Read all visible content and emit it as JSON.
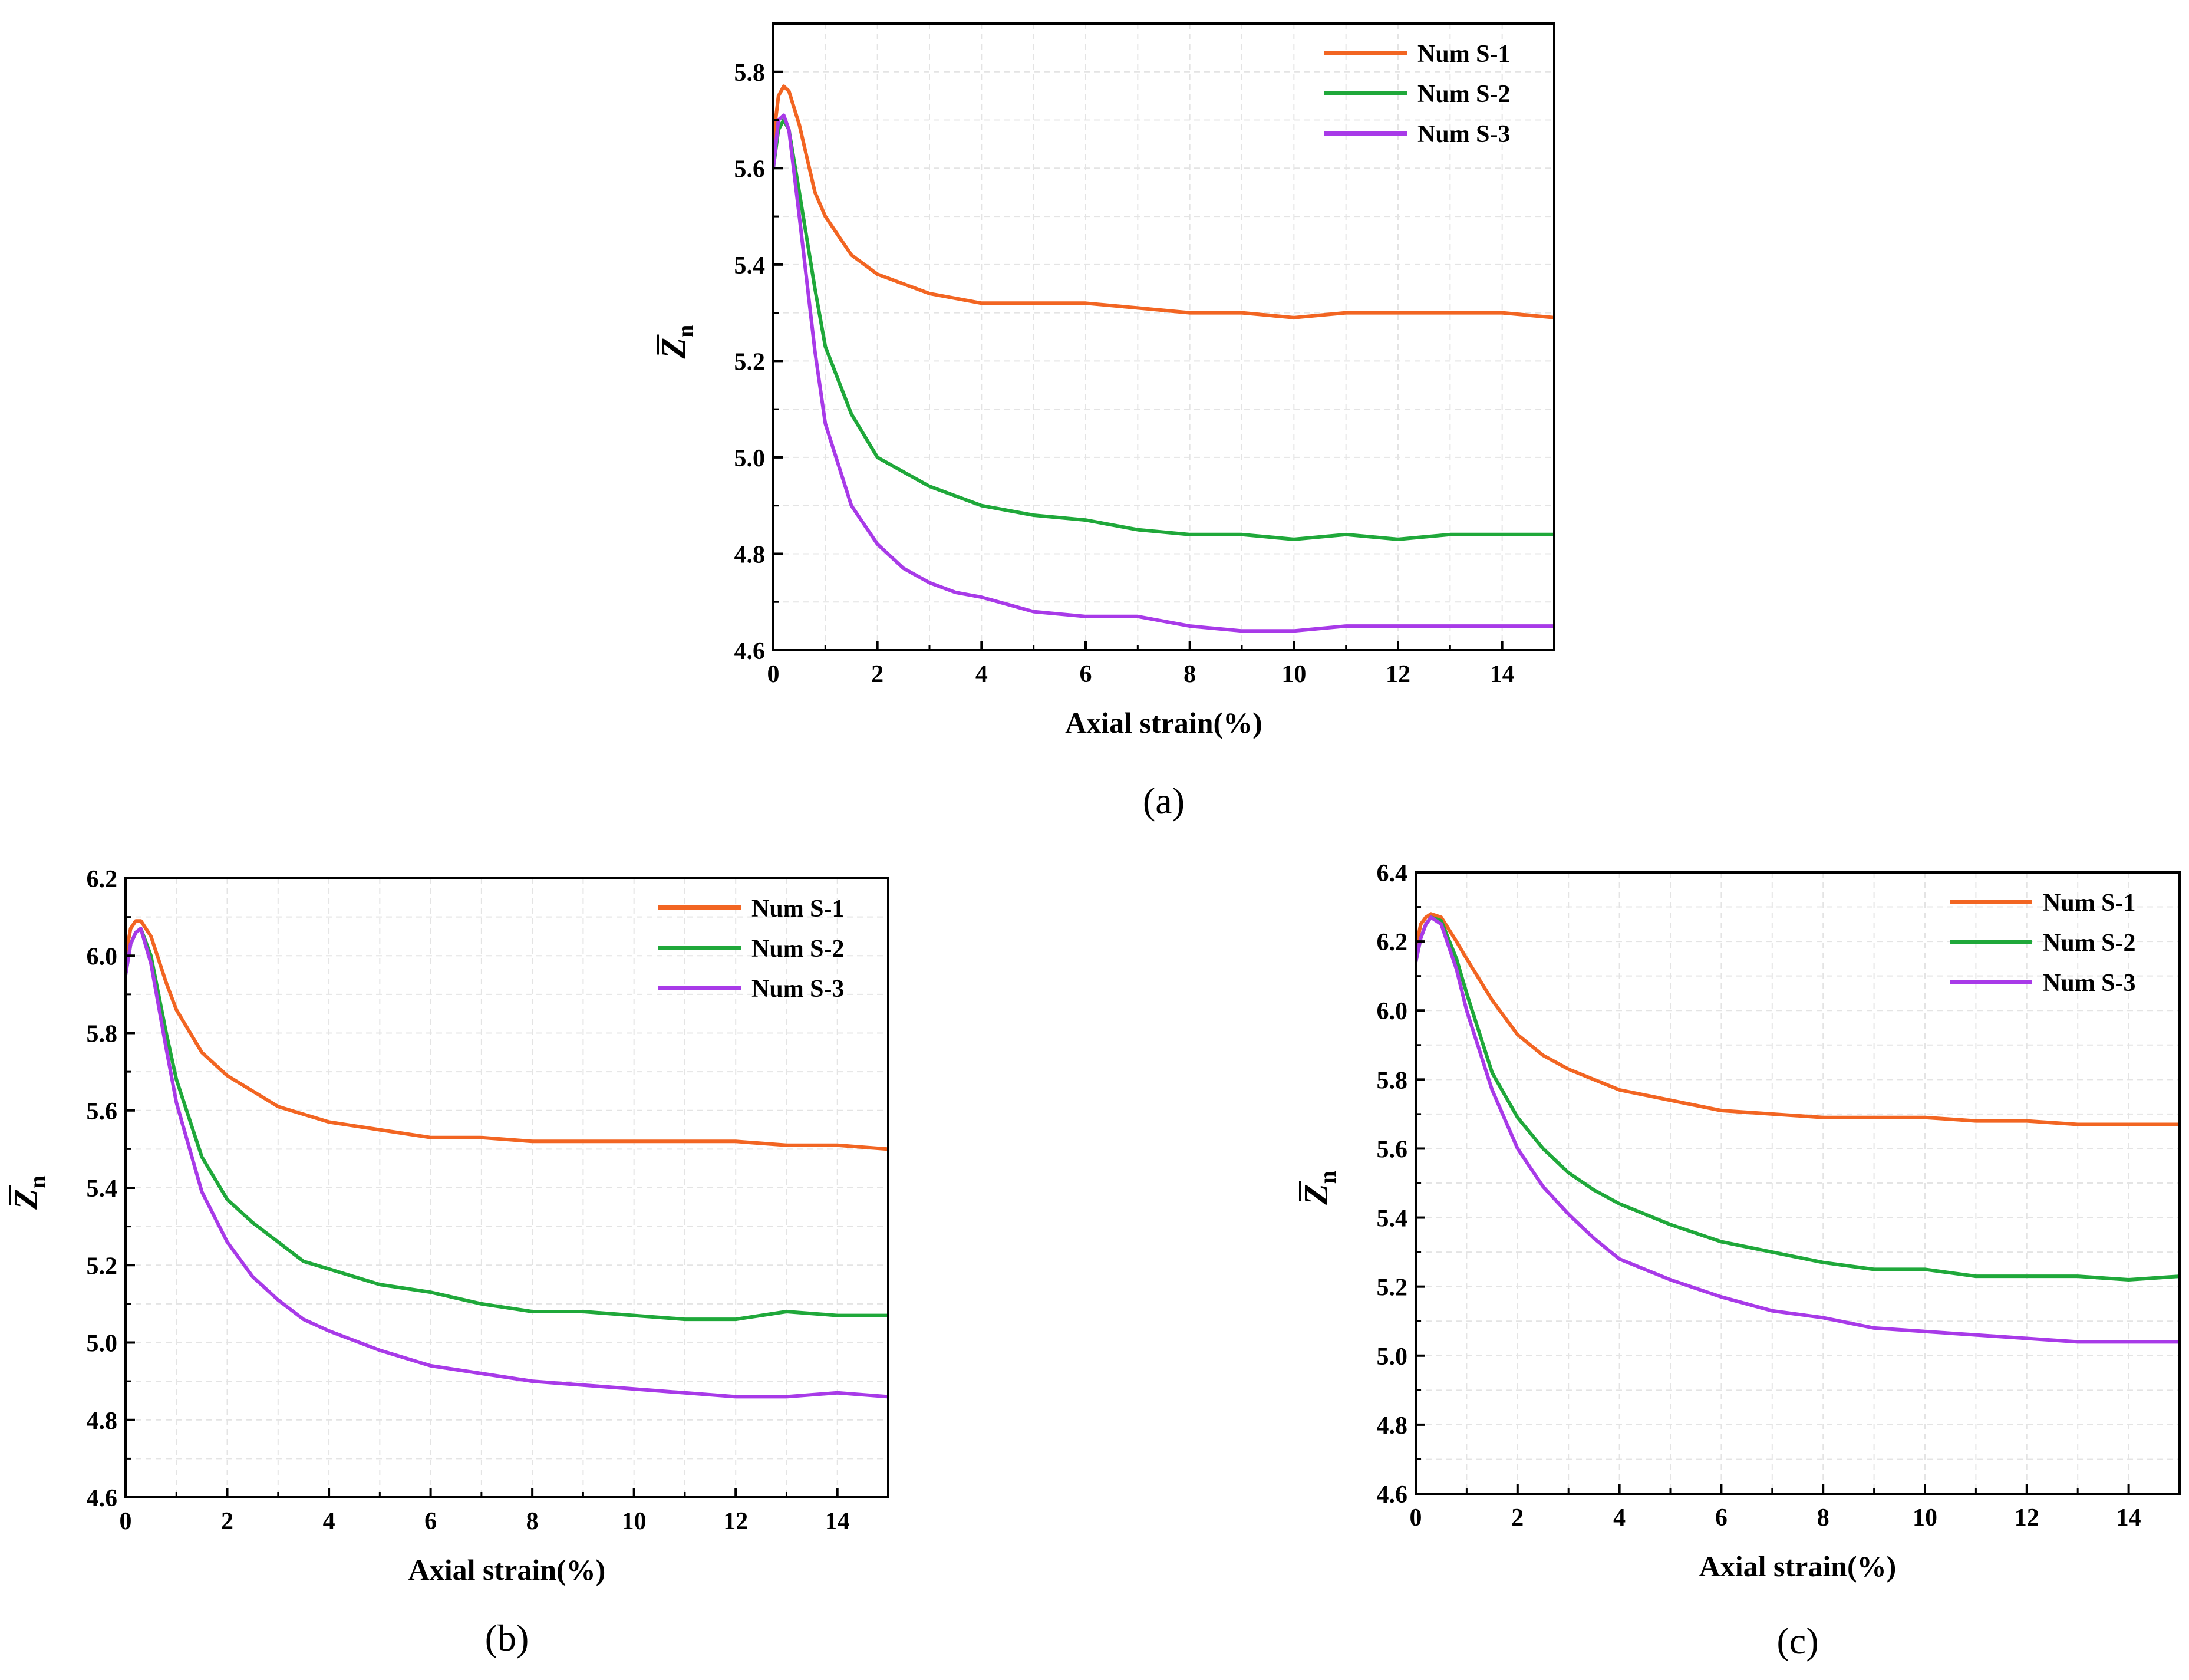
{
  "colors": {
    "Num S-1": "#f26522",
    "Num S-2": "#1fa83a",
    "Num S-3": "#a83ae8"
  },
  "chart_data": [
    {
      "id": "a",
      "type": "line",
      "panel_label": "a",
      "xlabel": "Axial strain(%)",
      "ylabel": "Z",
      "ylabel_subscript": "n",
      "ylabel_overbar": true,
      "xlim": [
        0,
        15
      ],
      "ylim": [
        4.6,
        5.9
      ],
      "xticks": [
        0,
        2,
        4,
        6,
        8,
        10,
        12,
        14
      ],
      "yticks": [
        4.6,
        4.8,
        5.0,
        5.2,
        5.4,
        5.6,
        5.8
      ],
      "grid": true,
      "legend_position": "top-right",
      "series": [
        {
          "name": "Num S-1",
          "points": [
            [
              0,
              5.66
            ],
            [
              0.1,
              5.75
            ],
            [
              0.2,
              5.77
            ],
            [
              0.3,
              5.76
            ],
            [
              0.5,
              5.69
            ],
            [
              0.8,
              5.55
            ],
            [
              1.0,
              5.5
            ],
            [
              1.5,
              5.42
            ],
            [
              2.0,
              5.38
            ],
            [
              2.5,
              5.36
            ],
            [
              3.0,
              5.34
            ],
            [
              4.0,
              5.32
            ],
            [
              5.0,
              5.32
            ],
            [
              6.0,
              5.32
            ],
            [
              7.0,
              5.31
            ],
            [
              8.0,
              5.3
            ],
            [
              9.0,
              5.3
            ],
            [
              10.0,
              5.29
            ],
            [
              11.0,
              5.3
            ],
            [
              12.0,
              5.3
            ],
            [
              13.0,
              5.3
            ],
            [
              14.0,
              5.3
            ],
            [
              15.0,
              5.29
            ]
          ]
        },
        {
          "name": "Num S-2",
          "points": [
            [
              0,
              5.6
            ],
            [
              0.1,
              5.68
            ],
            [
              0.2,
              5.7
            ],
            [
              0.3,
              5.68
            ],
            [
              0.5,
              5.55
            ],
            [
              0.8,
              5.35
            ],
            [
              1.0,
              5.23
            ],
            [
              1.5,
              5.09
            ],
            [
              2.0,
              5.0
            ],
            [
              2.5,
              4.97
            ],
            [
              3.0,
              4.94
            ],
            [
              3.5,
              4.92
            ],
            [
              4.0,
              4.9
            ],
            [
              5.0,
              4.88
            ],
            [
              6.0,
              4.87
            ],
            [
              7.0,
              4.85
            ],
            [
              8.0,
              4.84
            ],
            [
              9.0,
              4.84
            ],
            [
              10.0,
              4.83
            ],
            [
              11.0,
              4.84
            ],
            [
              12.0,
              4.83
            ],
            [
              13.0,
              4.84
            ],
            [
              14.0,
              4.84
            ],
            [
              15.0,
              4.84
            ]
          ]
        },
        {
          "name": "Num S-3",
          "points": [
            [
              0,
              5.6
            ],
            [
              0.1,
              5.7
            ],
            [
              0.2,
              5.71
            ],
            [
              0.3,
              5.68
            ],
            [
              0.5,
              5.5
            ],
            [
              0.8,
              5.22
            ],
            [
              1.0,
              5.07
            ],
            [
              1.5,
              4.9
            ],
            [
              2.0,
              4.82
            ],
            [
              2.5,
              4.77
            ],
            [
              3.0,
              4.74
            ],
            [
              3.5,
              4.72
            ],
            [
              4.0,
              4.71
            ],
            [
              5.0,
              4.68
            ],
            [
              6.0,
              4.67
            ],
            [
              7.0,
              4.67
            ],
            [
              8.0,
              4.65
            ],
            [
              9.0,
              4.64
            ],
            [
              10.0,
              4.64
            ],
            [
              11.0,
              4.65
            ],
            [
              12.0,
              4.65
            ],
            [
              13.0,
              4.65
            ],
            [
              14.0,
              4.65
            ],
            [
              15.0,
              4.65
            ]
          ]
        }
      ]
    },
    {
      "id": "b",
      "type": "line",
      "panel_label": "b",
      "xlabel": "Axial strain(%)",
      "ylabel": "Z",
      "ylabel_subscript": "n",
      "ylabel_overbar": true,
      "xlim": [
        0,
        15
      ],
      "ylim": [
        4.6,
        6.2
      ],
      "xticks": [
        0,
        2,
        4,
        6,
        8,
        10,
        12,
        14
      ],
      "yticks": [
        4.6,
        4.8,
        5.0,
        5.2,
        5.4,
        5.6,
        5.8,
        6.0,
        6.2
      ],
      "grid": true,
      "legend_position": "top-right",
      "series": [
        {
          "name": "Num S-1",
          "points": [
            [
              0,
              6.0
            ],
            [
              0.1,
              6.07
            ],
            [
              0.2,
              6.09
            ],
            [
              0.3,
              6.09
            ],
            [
              0.5,
              6.05
            ],
            [
              0.8,
              5.93
            ],
            [
              1.0,
              5.86
            ],
            [
              1.5,
              5.75
            ],
            [
              2.0,
              5.69
            ],
            [
              2.5,
              5.65
            ],
            [
              3.0,
              5.61
            ],
            [
              3.5,
              5.59
            ],
            [
              4.0,
              5.57
            ],
            [
              5.0,
              5.55
            ],
            [
              6.0,
              5.53
            ],
            [
              7.0,
              5.53
            ],
            [
              8.0,
              5.52
            ],
            [
              9.0,
              5.52
            ],
            [
              10.0,
              5.52
            ],
            [
              11.0,
              5.52
            ],
            [
              12.0,
              5.52
            ],
            [
              13.0,
              5.51
            ],
            [
              14.0,
              5.51
            ],
            [
              15.0,
              5.5
            ]
          ]
        },
        {
          "name": "Num S-2",
          "points": [
            [
              0,
              5.95
            ],
            [
              0.1,
              6.03
            ],
            [
              0.2,
              6.06
            ],
            [
              0.3,
              6.07
            ],
            [
              0.5,
              6.0
            ],
            [
              0.8,
              5.8
            ],
            [
              1.0,
              5.68
            ],
            [
              1.5,
              5.48
            ],
            [
              2.0,
              5.37
            ],
            [
              2.5,
              5.31
            ],
            [
              3.0,
              5.26
            ],
            [
              3.5,
              5.21
            ],
            [
              4.0,
              5.19
            ],
            [
              5.0,
              5.15
            ],
            [
              6.0,
              5.13
            ],
            [
              7.0,
              5.1
            ],
            [
              8.0,
              5.08
            ],
            [
              9.0,
              5.08
            ],
            [
              10.0,
              5.07
            ],
            [
              11.0,
              5.06
            ],
            [
              12.0,
              5.06
            ],
            [
              13.0,
              5.08
            ],
            [
              14.0,
              5.07
            ],
            [
              15.0,
              5.07
            ]
          ]
        },
        {
          "name": "Num S-3",
          "points": [
            [
              0,
              5.95
            ],
            [
              0.1,
              6.03
            ],
            [
              0.2,
              6.06
            ],
            [
              0.3,
              6.07
            ],
            [
              0.5,
              5.98
            ],
            [
              0.8,
              5.76
            ],
            [
              1.0,
              5.62
            ],
            [
              1.5,
              5.39
            ],
            [
              2.0,
              5.26
            ],
            [
              2.5,
              5.17
            ],
            [
              3.0,
              5.11
            ],
            [
              3.5,
              5.06
            ],
            [
              4.0,
              5.03
            ],
            [
              5.0,
              4.98
            ],
            [
              6.0,
              4.94
            ],
            [
              7.0,
              4.92
            ],
            [
              8.0,
              4.9
            ],
            [
              9.0,
              4.89
            ],
            [
              10.0,
              4.88
            ],
            [
              11.0,
              4.87
            ],
            [
              12.0,
              4.86
            ],
            [
              13.0,
              4.86
            ],
            [
              14.0,
              4.87
            ],
            [
              15.0,
              4.86
            ]
          ]
        }
      ]
    },
    {
      "id": "c",
      "type": "line",
      "panel_label": "c",
      "xlabel": "Axial strain(%)",
      "ylabel": "Z",
      "ylabel_subscript": "n",
      "ylabel_overbar": true,
      "xlim": [
        0,
        15
      ],
      "ylim": [
        4.6,
        6.4
      ],
      "xticks": [
        0,
        2,
        4,
        6,
        8,
        10,
        12,
        14
      ],
      "yticks": [
        4.6,
        4.8,
        5.0,
        5.2,
        5.4,
        5.6,
        5.8,
        6.0,
        6.2,
        6.4
      ],
      "grid": true,
      "legend_position": "top-right",
      "series": [
        {
          "name": "Num S-1",
          "points": [
            [
              0,
              6.18
            ],
            [
              0.1,
              6.25
            ],
            [
              0.2,
              6.27
            ],
            [
              0.3,
              6.28
            ],
            [
              0.5,
              6.27
            ],
            [
              0.8,
              6.2
            ],
            [
              1.0,
              6.15
            ],
            [
              1.5,
              6.03
            ],
            [
              2.0,
              5.93
            ],
            [
              2.5,
              5.87
            ],
            [
              3.0,
              5.83
            ],
            [
              3.5,
              5.8
            ],
            [
              4.0,
              5.77
            ],
            [
              5.0,
              5.74
            ],
            [
              6.0,
              5.71
            ],
            [
              7.0,
              5.7
            ],
            [
              8.0,
              5.69
            ],
            [
              9.0,
              5.69
            ],
            [
              10.0,
              5.69
            ],
            [
              11.0,
              5.68
            ],
            [
              12.0,
              5.68
            ],
            [
              13.0,
              5.67
            ],
            [
              14.0,
              5.67
            ],
            [
              15.0,
              5.67
            ]
          ]
        },
        {
          "name": "Num S-2",
          "points": [
            [
              0,
              6.14
            ],
            [
              0.1,
              6.21
            ],
            [
              0.2,
              6.25
            ],
            [
              0.3,
              6.27
            ],
            [
              0.5,
              6.26
            ],
            [
              0.8,
              6.15
            ],
            [
              1.0,
              6.05
            ],
            [
              1.5,
              5.82
            ],
            [
              2.0,
              5.69
            ],
            [
              2.5,
              5.6
            ],
            [
              3.0,
              5.53
            ],
            [
              3.5,
              5.48
            ],
            [
              4.0,
              5.44
            ],
            [
              5.0,
              5.38
            ],
            [
              6.0,
              5.33
            ],
            [
              7.0,
              5.3
            ],
            [
              8.0,
              5.27
            ],
            [
              9.0,
              5.25
            ],
            [
              10.0,
              5.25
            ],
            [
              11.0,
              5.23
            ],
            [
              12.0,
              5.23
            ],
            [
              13.0,
              5.23
            ],
            [
              14.0,
              5.22
            ],
            [
              15.0,
              5.23
            ]
          ]
        },
        {
          "name": "Num S-3",
          "points": [
            [
              0,
              6.14
            ],
            [
              0.1,
              6.21
            ],
            [
              0.2,
              6.25
            ],
            [
              0.3,
              6.27
            ],
            [
              0.5,
              6.25
            ],
            [
              0.8,
              6.12
            ],
            [
              1.0,
              6.0
            ],
            [
              1.5,
              5.77
            ],
            [
              2.0,
              5.6
            ],
            [
              2.5,
              5.49
            ],
            [
              3.0,
              5.41
            ],
            [
              3.5,
              5.34
            ],
            [
              4.0,
              5.28
            ],
            [
              5.0,
              5.22
            ],
            [
              6.0,
              5.17
            ],
            [
              7.0,
              5.13
            ],
            [
              8.0,
              5.11
            ],
            [
              9.0,
              5.08
            ],
            [
              10.0,
              5.07
            ],
            [
              11.0,
              5.06
            ],
            [
              12.0,
              5.05
            ],
            [
              13.0,
              5.04
            ],
            [
              14.0,
              5.04
            ],
            [
              15.0,
              5.04
            ]
          ]
        }
      ]
    }
  ]
}
